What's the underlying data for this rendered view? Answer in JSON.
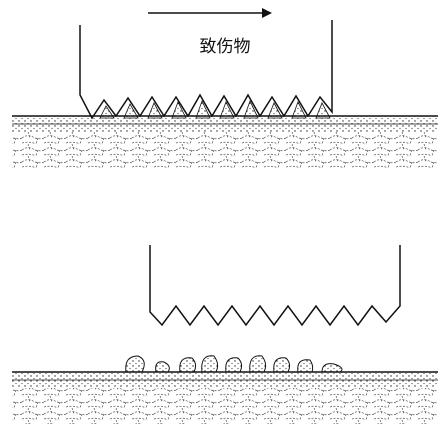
{
  "label": "致伤物"
}
